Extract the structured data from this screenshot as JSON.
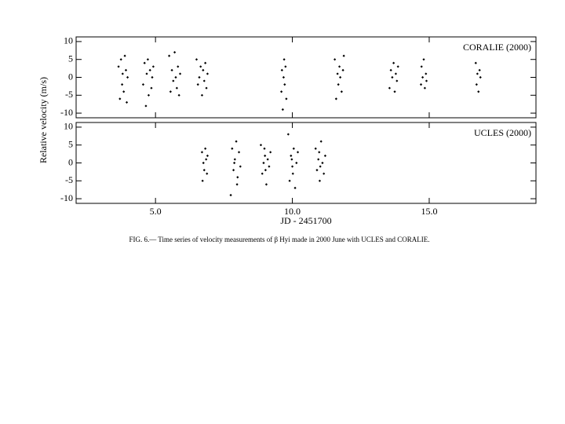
{
  "chart_data": [
    {
      "type": "scatter",
      "title": "CORALIE (2000)",
      "ylabel": "Relative velocity (m/s)",
      "xlim": [
        2.1,
        18.9
      ],
      "ylim": [
        -11.3,
        11.3
      ],
      "xticks": [
        {
          "value": 5,
          "label": "5.0"
        },
        {
          "value": 10,
          "label": "10.0"
        },
        {
          "value": 15,
          "label": "15.0"
        }
      ],
      "yticks": [
        -10,
        -5,
        0,
        5,
        10
      ],
      "series": [
        {
          "name": "CORALIE",
          "color": "#000000",
          "x": [
            3.65,
            3.7,
            3.74,
            3.78,
            3.8,
            3.84,
            3.88,
            3.92,
            3.95,
            3.98,
            4.55,
            4.6,
            4.65,
            4.68,
            4.72,
            4.75,
            4.8,
            4.85,
            4.88,
            4.92,
            5.5,
            5.55,
            5.6,
            5.65,
            5.7,
            5.74,
            5.78,
            5.82,
            5.86,
            5.9,
            6.5,
            6.55,
            6.6,
            6.65,
            6.7,
            6.74,
            6.78,
            6.82,
            6.86,
            6.9,
            9.6,
            9.62,
            9.65,
            9.68,
            9.7,
            9.72,
            9.75,
            9.78,
            11.55,
            11.6,
            11.65,
            11.68,
            11.72,
            11.75,
            11.8,
            11.85,
            11.88,
            13.55,
            13.6,
            13.65,
            13.7,
            13.74,
            13.78,
            13.82,
            13.86,
            14.7,
            14.72,
            14.76,
            14.8,
            14.84,
            14.88,
            14.9,
            16.7,
            16.73,
            16.76,
            16.8,
            16.84,
            16.87
          ],
          "y": [
            3,
            -6,
            5,
            -2,
            1,
            -4,
            6,
            2,
            -7,
            0,
            -2,
            4,
            -8,
            1,
            5,
            -5,
            2,
            -3,
            0,
            3,
            6,
            -4,
            2,
            -1,
            7,
            0,
            -3,
            3,
            -5,
            1,
            5,
            -2,
            0,
            3,
            -5,
            2,
            -1,
            4,
            -3,
            1,
            -4,
            2,
            -9,
            0,
            5,
            -2,
            3,
            -6,
            5,
            -6,
            1,
            -2,
            3,
            0,
            -4,
            2,
            6,
            -3,
            2,
            0,
            4,
            -4,
            1,
            -1,
            3,
            -2,
            3,
            0,
            5,
            -3,
            1,
            -1,
            4,
            -2,
            1,
            -4,
            2,
            0
          ]
        }
      ]
    },
    {
      "type": "scatter",
      "title": "UCLES (2000)",
      "xlabel": "JD - 2451700",
      "xlim": [
        2.1,
        18.9
      ],
      "ylim": [
        -11.3,
        11.3
      ],
      "xticks": [
        {
          "value": 5,
          "label": "5.0"
        },
        {
          "value": 10,
          "label": "10.0"
        },
        {
          "value": 15,
          "label": "15.0"
        }
      ],
      "yticks": [
        -10,
        -5,
        0,
        5,
        10
      ],
      "series": [
        {
          "name": "UCLES",
          "color": "#000000",
          "x": [
            6.7,
            6.72,
            6.75,
            6.78,
            6.82,
            6.85,
            6.88,
            6.9,
            7.75,
            7.8,
            7.85,
            7.9,
            7.95,
            8.0,
            8.05,
            8.1,
            7.88,
            7.98,
            8.85,
            8.9,
            8.95,
            9.0,
            9.05,
            9.1,
            9.15,
            9.2,
            9.02,
            8.98,
            9.85,
            9.9,
            9.95,
            10.0,
            10.05,
            10.1,
            10.15,
            10.2,
            10.02,
            9.98,
            10.85,
            10.9,
            10.95,
            11.0,
            11.05,
            11.1,
            11.15,
            11.2,
            11.02,
            10.98
          ],
          "y": [
            3,
            -5,
            0,
            -2,
            4,
            1,
            -3,
            2,
            -9,
            4,
            -2,
            1,
            6,
            -4,
            3,
            -1,
            0,
            -6,
            5,
            -3,
            0,
            2,
            -6,
            1,
            -1,
            3,
            -2,
            4,
            8,
            -5,
            2,
            -1,
            4,
            -7,
            0,
            3,
            -3,
            1,
            4,
            -2,
            1,
            -5,
            6,
            0,
            -3,
            2,
            -1,
            3
          ]
        }
      ]
    }
  ],
  "caption": "FIG. 6.— Time series of velocity measurements of β Hyi made in 2000 June with UCLES and CORALIE."
}
